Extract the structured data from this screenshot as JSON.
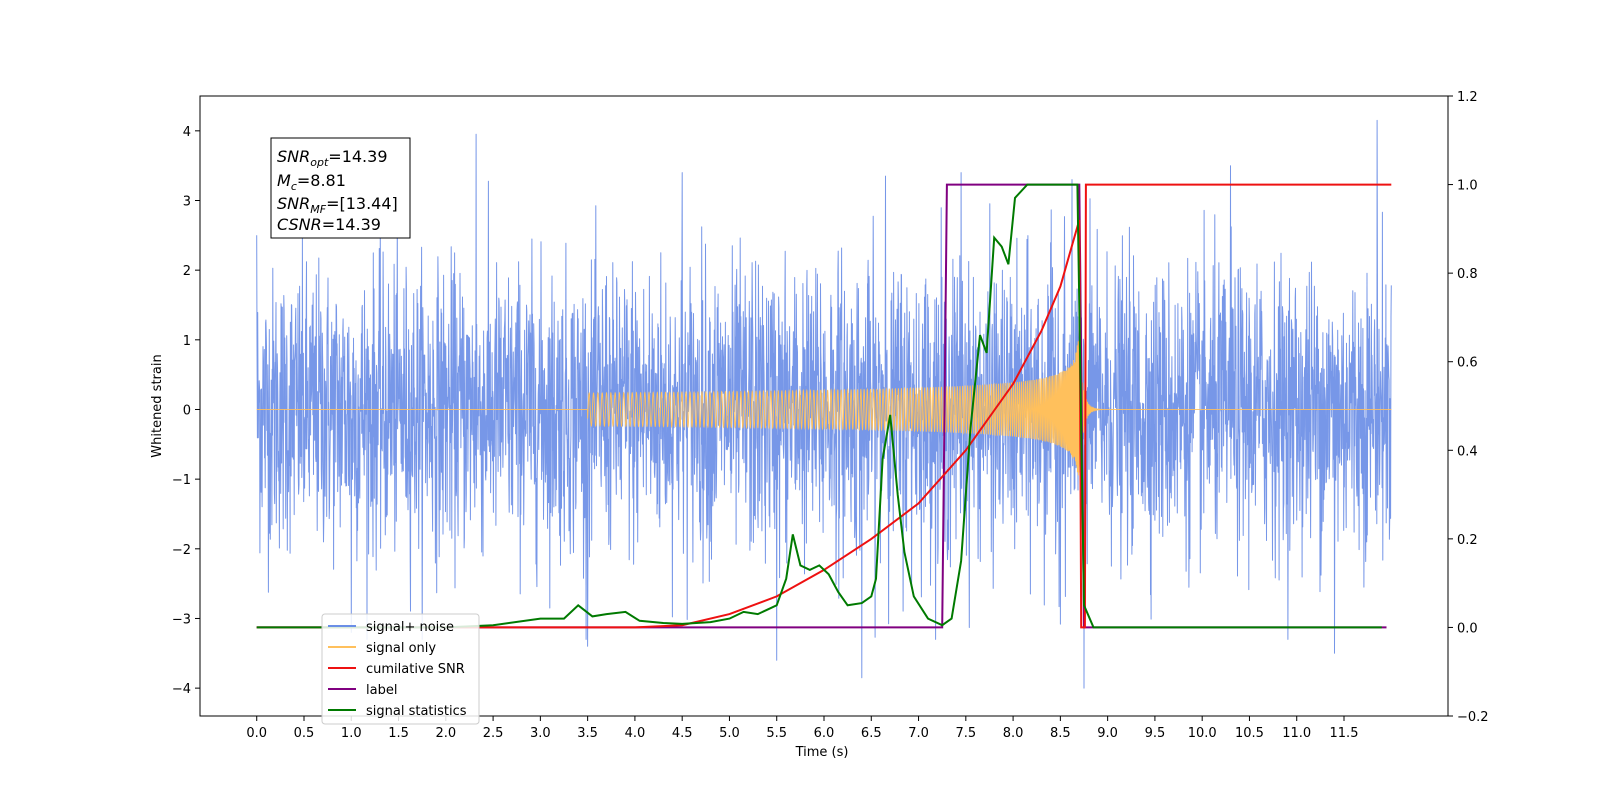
{
  "chart_data": {
    "type": "line",
    "xlabel": "Time (s)",
    "ylabel": "Whitened strain",
    "xlim": [
      -0.6,
      12.6
    ],
    "ylim": [
      -4.4,
      4.5
    ],
    "y2lim": [
      -0.2,
      1.2
    ],
    "x_ticks": [
      "0.0",
      "0.5",
      "1.0",
      "1.5",
      "2.0",
      "2.5",
      "3.0",
      "3.5",
      "4.0",
      "4.5",
      "5.0",
      "5.5",
      "6.0",
      "6.5",
      "7.0",
      "7.5",
      "8.0",
      "8.5",
      "9.0",
      "9.5",
      "10.0",
      "10.5",
      "11.0",
      "11.5"
    ],
    "y_ticks": [
      "4",
      "3",
      "2",
      "1",
      "0",
      "−1",
      "−2",
      "−3",
      "−4"
    ],
    "y2_ticks": [
      "1.2",
      "1.0",
      "0.8",
      "0.6",
      "0.4",
      "0.2",
      "0.0",
      "−0.2"
    ],
    "annotation": {
      "lines": [
        {
          "var": "SNR",
          "sub": "opt",
          "value": "=14.39"
        },
        {
          "var": "M",
          "sub": "c",
          "value": "=8.81"
        },
        {
          "var": "SNR",
          "sub": "MF",
          "value": "=[13.44]"
        },
        {
          "var": "CSNR",
          "sub": "",
          "value": "=14.39"
        }
      ]
    },
    "legend": {
      "placement": "lower-left",
      "entries": [
        {
          "label": "signal+ noise",
          "color": "#6b8ee6"
        },
        {
          "label": "signal only",
          "color": "#ffc05c"
        },
        {
          "label": "cumilative SNR",
          "color": "#ee1111"
        },
        {
          "label": "label",
          "color": "#800080"
        },
        {
          "label": "signal statistics",
          "color": "#007a00"
        }
      ]
    },
    "series": [
      {
        "name": "signal+ noise",
        "axis": "left",
        "color": "#6b8ee6",
        "x_range": [
          0.0,
          12.0
        ],
        "noise_sigma": 1.0,
        "outlier_points": [
          [
            0.0,
            2.5
          ],
          [
            2.32,
            3.95
          ],
          [
            4.5,
            3.4
          ],
          [
            6.65,
            3.35
          ],
          [
            7.45,
            3.4
          ],
          [
            10.3,
            3.5
          ],
          [
            11.85,
            4.15
          ],
          [
            6.4,
            -3.85
          ],
          [
            8.75,
            -4.0
          ],
          [
            11.4,
            -3.5
          ],
          [
            5.5,
            -3.6
          ],
          [
            3.5,
            -3.4
          ],
          [
            1.0,
            -3.2
          ]
        ]
      },
      {
        "name": "signal only",
        "axis": "left",
        "color": "#ffc05c",
        "chirp": {
          "start": 3.5,
          "merger": 8.7,
          "peak_amplitude": 1.0,
          "ringdown_end": 8.95
        }
      },
      {
        "name": "cumilative SNR",
        "axis": "right",
        "color": "#ee1111",
        "points": [
          [
            0.0,
            0.0
          ],
          [
            4.0,
            0.0
          ],
          [
            4.5,
            0.005
          ],
          [
            5.0,
            0.03
          ],
          [
            5.5,
            0.07
          ],
          [
            6.0,
            0.13
          ],
          [
            6.5,
            0.2
          ],
          [
            7.0,
            0.28
          ],
          [
            7.5,
            0.4
          ],
          [
            8.0,
            0.55
          ],
          [
            8.3,
            0.67
          ],
          [
            8.5,
            0.77
          ],
          [
            8.62,
            0.86
          ],
          [
            8.7,
            0.92
          ],
          [
            8.72,
            0.0
          ],
          [
            8.76,
            0.0
          ],
          [
            8.77,
            1.0
          ],
          [
            12.0,
            1.0
          ]
        ]
      },
      {
        "name": "label",
        "axis": "right",
        "color": "#800080",
        "points": [
          [
            0.0,
            0.0
          ],
          [
            7.25,
            0.0
          ],
          [
            7.3,
            1.0
          ],
          [
            8.7,
            1.0
          ],
          [
            8.75,
            0.0
          ],
          [
            11.95,
            0.0
          ]
        ]
      },
      {
        "name": "signal statistics",
        "axis": "right",
        "color": "#007a00",
        "points": [
          [
            0.0,
            0.0
          ],
          [
            1.5,
            0.0
          ],
          [
            2.0,
            0.0
          ],
          [
            2.5,
            0.005
          ],
          [
            3.0,
            0.02
          ],
          [
            3.25,
            0.02
          ],
          [
            3.4,
            0.05
          ],
          [
            3.55,
            0.025
          ],
          [
            3.7,
            0.03
          ],
          [
            3.9,
            0.035
          ],
          [
            4.05,
            0.015
          ],
          [
            4.3,
            0.01
          ],
          [
            4.5,
            0.008
          ],
          [
            4.8,
            0.012
          ],
          [
            5.0,
            0.02
          ],
          [
            5.15,
            0.035
          ],
          [
            5.3,
            0.03
          ],
          [
            5.4,
            0.04
          ],
          [
            5.5,
            0.05
          ],
          [
            5.6,
            0.11
          ],
          [
            5.67,
            0.21
          ],
          [
            5.75,
            0.14
          ],
          [
            5.85,
            0.13
          ],
          [
            5.95,
            0.14
          ],
          [
            6.05,
            0.12
          ],
          [
            6.15,
            0.08
          ],
          [
            6.25,
            0.05
          ],
          [
            6.4,
            0.055
          ],
          [
            6.5,
            0.07
          ],
          [
            6.55,
            0.11
          ],
          [
            6.62,
            0.38
          ],
          [
            6.7,
            0.48
          ],
          [
            6.78,
            0.3
          ],
          [
            6.85,
            0.17
          ],
          [
            6.95,
            0.07
          ],
          [
            7.1,
            0.02
          ],
          [
            7.25,
            0.005
          ],
          [
            7.35,
            0.02
          ],
          [
            7.45,
            0.15
          ],
          [
            7.55,
            0.45
          ],
          [
            7.65,
            0.66
          ],
          [
            7.72,
            0.62
          ],
          [
            7.8,
            0.88
          ],
          [
            7.88,
            0.86
          ],
          [
            7.95,
            0.82
          ],
          [
            8.02,
            0.97
          ],
          [
            8.15,
            1.0
          ],
          [
            8.45,
            1.0
          ],
          [
            8.68,
            1.0
          ],
          [
            8.75,
            0.05
          ],
          [
            8.85,
            0.0
          ],
          [
            11.9,
            0.0
          ]
        ]
      }
    ]
  }
}
